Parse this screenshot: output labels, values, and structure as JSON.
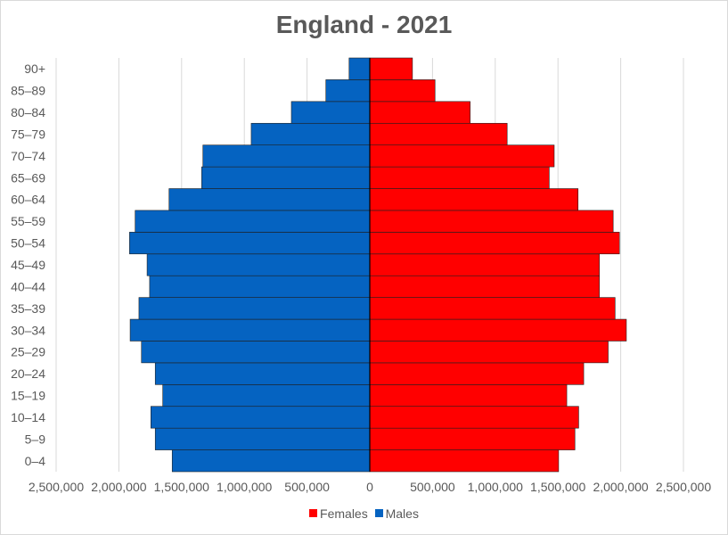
{
  "chart_data": {
    "type": "bar",
    "orientation": "horizontal",
    "title": "England - 2021",
    "categories": [
      "0–4",
      "5–9",
      "10–14",
      "15–19",
      "20–24",
      "25–29",
      "30–34",
      "35–39",
      "40–44",
      "45–49",
      "50–54",
      "55–59",
      "60–64",
      "65–69",
      "70–74",
      "75–79",
      "80–84",
      "85–89",
      "90+"
    ],
    "series": [
      {
        "name": "Females",
        "color": "#ff0000",
        "values": [
          1505000,
          1635000,
          1665000,
          1570000,
          1705000,
          1900000,
          2045000,
          1955000,
          1830000,
          1830000,
          1990000,
          1940000,
          1660000,
          1430000,
          1470000,
          1095000,
          800000,
          520000,
          340000
        ]
      },
      {
        "name": "Males",
        "color": "#0563c1",
        "values": [
          1575000,
          1710000,
          1745000,
          1650000,
          1710000,
          1820000,
          1910000,
          1840000,
          1755000,
          1775000,
          1915000,
          1870000,
          1600000,
          1340000,
          1330000,
          945000,
          625000,
          350000,
          165000
        ]
      }
    ],
    "xlim": [
      -2500000,
      2500000
    ],
    "xticks": [
      "2,500,000",
      "2,000,000",
      "1,500,000",
      "1,000,000",
      "500,000",
      "0",
      "500,000",
      "1,000,000",
      "1,500,000",
      "2,000,000",
      "2,500,000"
    ],
    "grid": "vertical",
    "legend": "bottom"
  }
}
